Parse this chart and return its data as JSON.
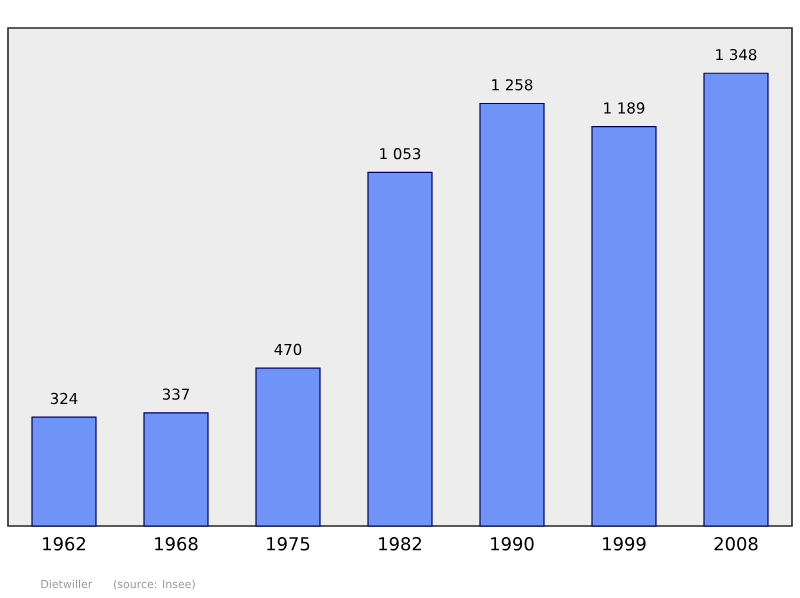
{
  "chart_data": {
    "type": "bar",
    "categories": [
      "1962",
      "1968",
      "1975",
      "1982",
      "1990",
      "1999",
      "2008"
    ],
    "values": [
      324,
      337,
      470,
      1053,
      1258,
      1189,
      1348
    ],
    "value_labels": [
      "324",
      "337",
      "470",
      "1 053",
      "1 258",
      "1 189",
      "1 348"
    ],
    "color": "#6f94f7",
    "annotations": [
      "Dietwiller",
      "(source: Insee)"
    ]
  }
}
